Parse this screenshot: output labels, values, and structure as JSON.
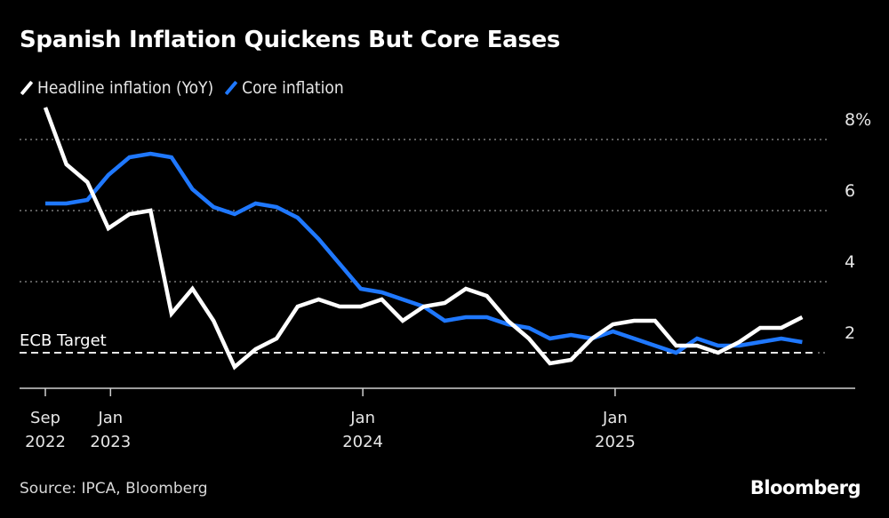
{
  "chart_data": {
    "type": "line",
    "title": "Spanish Inflation Quickens But Core Eases",
    "xlabel": "",
    "ylabel": "",
    "ylim": [
      1,
      9
    ],
    "y_ticks": [
      {
        "value": 8,
        "label": "8%"
      },
      {
        "value": 6,
        "label": "6"
      },
      {
        "value": 4,
        "label": "4"
      },
      {
        "value": 2,
        "label": "2"
      }
    ],
    "grid": true,
    "legend_position": "top-left",
    "x": [
      "Sep 2022",
      "Oct 2022",
      "Nov 2022",
      "Dec 2022",
      "Jan 2023",
      "Feb 2023",
      "Mar 2023",
      "Apr 2023",
      "May 2023",
      "Jun 2023",
      "Jul 2023",
      "Aug 2023",
      "Sep 2023",
      "Oct 2023",
      "Nov 2023",
      "Dec 2023",
      "Jan 2024",
      "Feb 2024",
      "Mar 2024",
      "Apr 2024",
      "May 2024",
      "Jun 2024",
      "Jul 2024",
      "Aug 2024",
      "Sep 2024",
      "Oct 2024",
      "Nov 2024",
      "Dec 2024",
      "Jan 2025",
      "Feb 2025",
      "Mar 2025",
      "Apr 2025",
      "May 2025",
      "Jun 2025",
      "Jul 2025",
      "Aug 2025",
      "Sep 2025"
    ],
    "x_ticks": [
      {
        "index": 0,
        "line1": "Sep",
        "line2": "2022"
      },
      {
        "index": 3.1,
        "line1": "Jan",
        "line2": "2023"
      },
      {
        "index": 15.1,
        "line1": "Jan",
        "line2": "2024"
      },
      {
        "index": 27.1,
        "line1": "Jan",
        "line2": "2025"
      }
    ],
    "series": [
      {
        "name": "Headline inflation (YoY)",
        "color": "#ffffff",
        "values": [
          8.9,
          7.3,
          6.8,
          5.5,
          5.9,
          6.0,
          3.1,
          3.8,
          2.9,
          1.6,
          2.1,
          2.4,
          3.3,
          3.5,
          3.3,
          3.3,
          3.5,
          2.9,
          3.3,
          3.4,
          3.8,
          3.6,
          2.9,
          2.4,
          1.7,
          1.8,
          2.4,
          2.8,
          2.9,
          2.9,
          2.2,
          2.2,
          2.0,
          2.3,
          2.7,
          2.7,
          3.0
        ]
      },
      {
        "name": "Core inflation",
        "color": "#1f78ff",
        "values": [
          6.2,
          6.2,
          6.3,
          7.0,
          7.5,
          7.6,
          7.5,
          6.6,
          6.1,
          5.9,
          6.2,
          6.1,
          5.8,
          5.2,
          4.5,
          3.8,
          3.7,
          3.5,
          3.3,
          2.9,
          3.0,
          3.0,
          2.8,
          2.7,
          2.4,
          2.5,
          2.4,
          2.6,
          2.4,
          2.2,
          2.0,
          2.4,
          2.2,
          2.2,
          2.3,
          2.4,
          2.3
        ]
      }
    ],
    "annotations": [
      {
        "label": "ECB Target",
        "value": 2,
        "style": "dashed"
      }
    ]
  },
  "legend": {
    "headline_label": "Headline inflation (YoY)",
    "core_label": "Core inflation"
  },
  "footer": {
    "source": "Source: IPCA, Bloomberg",
    "brand": "Bloomberg"
  }
}
